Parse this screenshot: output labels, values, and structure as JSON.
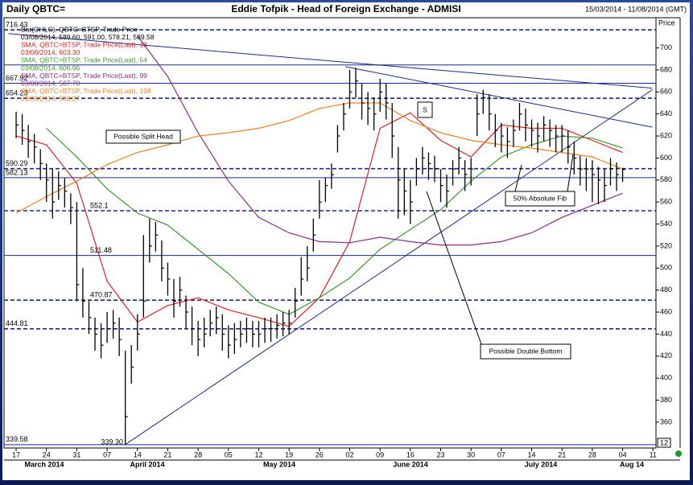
{
  "chart_data": {
    "type": "ohlc",
    "title": "Daily QBTC=",
    "subtitle": "Eddie Tofpik - Head of Foreign Exchange - ADMISI",
    "date_range": "15/03/2014 - 11/08/2014 (GMT)",
    "y_axis_label": "Price",
    "corner_label": "12",
    "legend": [
      {
        "text": "Bar(OHLC), QBTC=BTSP, Trade Price",
        "color": "#000000"
      },
      {
        "text": "03/08/2014, 589.60, 591.00, 578.21, 589.58",
        "color": "#000000"
      },
      {
        "text": "SMA, QBTC=BTSP, Trade Price(Last), 18",
        "color": "#e02020"
      },
      {
        "text": "03/08/2014, 603.30",
        "color": "#e02020"
      },
      {
        "text": "SMA, QBTC=BTSP, Trade Price(Last), 54",
        "color": "#3a9a2a"
      },
      {
        "text": "03/08/2014, 606.96",
        "color": "#3a9a2a"
      },
      {
        "text": "SMA, QBTC=BTSP, Trade Price(Last), 99",
        "color": "#8a2a8a"
      },
      {
        "text": "03/08/2014, 567.78",
        "color": "#8a2a8a"
      },
      {
        "text": "SMA, QBTC=BTSP, Trade Price(Last), 198",
        "color": "#f08020"
      },
      {
        "text": "03/08/2014, 588.27",
        "color": "#f08020"
      }
    ],
    "months": [
      "March 2014",
      "April 2014",
      "May 2014",
      "June 2014",
      "July 2014",
      "Aug 14"
    ],
    "annotations": [
      "Possible Split Head",
      "S",
      "50% Absolute Fib",
      "Possible Double Bottom"
    ],
    "xlim": [
      -1.6,
      105.1
    ],
    "xticks": [
      {
        "value": 0,
        "label": "17"
      },
      {
        "value": 5,
        "label": "24"
      },
      {
        "value": 10,
        "label": "31"
      },
      {
        "value": 15,
        "label": "07"
      },
      {
        "value": 20,
        "label": "14"
      },
      {
        "value": 25,
        "label": "21"
      },
      {
        "value": 30,
        "label": "28"
      },
      {
        "value": 35,
        "label": "05"
      },
      {
        "value": 40,
        "label": "12"
      },
      {
        "value": 45,
        "label": "19"
      },
      {
        "value": 50,
        "label": "26"
      },
      {
        "value": 55,
        "label": "02"
      },
      {
        "value": 60,
        "label": "09"
      },
      {
        "value": 65,
        "label": "16"
      },
      {
        "value": 70,
        "label": "23"
      },
      {
        "value": 75,
        "label": "30"
      },
      {
        "value": 80,
        "label": "07"
      },
      {
        "value": 85,
        "label": "14"
      },
      {
        "value": 90,
        "label": "21"
      },
      {
        "value": 95,
        "label": "28"
      },
      {
        "value": 100,
        "label": "04"
      },
      {
        "value": 105,
        "label": "11"
      }
    ],
    "ylim": [
      338,
      726
    ],
    "yticks": [
      360,
      380,
      400,
      420,
      440,
      460,
      480,
      500,
      520,
      540,
      560,
      580,
      600,
      620,
      640,
      660,
      680,
      700
    ],
    "bar_color": "#000000",
    "high": [
      642,
      640,
      630,
      622,
      608,
      595,
      590,
      588,
      582,
      568,
      560,
      500,
      470,
      455,
      450,
      460,
      462,
      455,
      425,
      430,
      458,
      530,
      545,
      542,
      525,
      505,
      490,
      492,
      475,
      465,
      452,
      455,
      462,
      465,
      458,
      448,
      450,
      452,
      455,
      452,
      452,
      455,
      455,
      458,
      460,
      462,
      482,
      510,
      520,
      545,
      580,
      582,
      595,
      630,
      650,
      680,
      682,
      668,
      660,
      655,
      672,
      668,
      650,
      610,
      590,
      580,
      600,
      610,
      605,
      602,
      590,
      585,
      598,
      610,
      598,
      600,
      658,
      662,
      658,
      640,
      632,
      628,
      635,
      650,
      645,
      635,
      632,
      638,
      635,
      630,
      630,
      625,
      615,
      602,
      600,
      598,
      592,
      590,
      600,
      596,
      591
    ],
    "low": [
      618,
      612,
      600,
      595,
      580,
      560,
      545,
      562,
      555,
      540,
      470,
      455,
      440,
      425,
      418,
      432,
      436,
      420,
      339.3,
      395,
      425,
      455,
      505,
      515,
      488,
      475,
      455,
      465,
      445,
      430,
      420,
      428,
      438,
      440,
      425,
      418,
      422,
      428,
      432,
      428,
      428,
      432,
      433,
      436,
      438,
      440,
      455,
      475,
      488,
      515,
      545,
      560,
      572,
      605,
      625,
      645,
      655,
      635,
      630,
      625,
      642,
      635,
      600,
      545,
      548,
      540,
      575,
      585,
      580,
      578,
      560,
      555,
      575,
      585,
      570,
      575,
      620,
      640,
      625,
      610,
      605,
      600,
      610,
      625,
      615,
      610,
      605,
      615,
      610,
      605,
      605,
      595,
      585,
      575,
      570,
      560,
      558,
      560,
      575,
      570,
      578.21
    ],
    "close": [
      630,
      625,
      615,
      610,
      595,
      580,
      560,
      575,
      570,
      555,
      485,
      470,
      455,
      440,
      430,
      445,
      450,
      435,
      365,
      410,
      440,
      470,
      520,
      530,
      500,
      490,
      470,
      480,
      460,
      445,
      435,
      440,
      450,
      455,
      440,
      430,
      435,
      440,
      445,
      440,
      440,
      445,
      445,
      448,
      450,
      450,
      470,
      490,
      500,
      530,
      560,
      575,
      585,
      620,
      640,
      660,
      670,
      650,
      645,
      640,
      660,
      650,
      620,
      580,
      570,
      560,
      590,
      600,
      595,
      590,
      575,
      570,
      590,
      600,
      585,
      590,
      640,
      655,
      640,
      625,
      620,
      615,
      625,
      640,
      630,
      625,
      620,
      630,
      625,
      620,
      620,
      610,
      600,
      590,
      590,
      585,
      580,
      575,
      590,
      585,
      589.58
    ],
    "ma_x": [
      0,
      5,
      10,
      15,
      20,
      25,
      30,
      35,
      40,
      45,
      50,
      55,
      60,
      65,
      70,
      75,
      80,
      85,
      90,
      95,
      100
    ],
    "series": [
      {
        "name": "SMA 18",
        "color": "#e02020",
        "values": [
          620,
          612,
          577,
          488,
          451,
          466,
          473,
          462,
          455,
          447,
          473,
          524,
          627,
          641,
          616,
          601,
          630,
          627,
          627,
          616,
          605
        ]
      },
      {
        "name": "SMA 54",
        "color": "#3a9a2a",
        "values": [
          null,
          627,
          601,
          572,
          550,
          539,
          517,
          495,
          469,
          458,
          473,
          491,
          517,
          535,
          553,
          579,
          601,
          612,
          620,
          618,
          609
        ]
      },
      {
        "name": "SMA 99",
        "color": "#8a2a8a",
        "values": [
          null,
          null,
          null,
          null,
          711,
          674,
          623,
          579,
          546,
          532,
          524,
          523,
          528,
          524,
          521,
          521,
          524,
          532,
          546,
          557,
          568
        ]
      },
      {
        "name": "SMA 198",
        "color": "#f08020",
        "values": [
          550,
          565,
          579,
          594,
          605,
          612,
          620,
          623,
          627,
          634,
          645,
          650,
          650,
          634,
          623,
          616,
          612,
          609,
          605,
          601,
          590
        ]
      }
    ],
    "levels": [
      {
        "price": 716.43,
        "style": "dashed"
      },
      {
        "price": 667.92,
        "style": "solid"
      },
      {
        "price": 654.23,
        "style": "dashed"
      },
      {
        "price": 590.29,
        "style": "dashed"
      },
      {
        "price": 582.13,
        "style": "solid"
      },
      {
        "price": 552.1,
        "style": "dashed"
      },
      {
        "price": 511.48,
        "style": "solid"
      },
      {
        "price": 470.87,
        "style": "dashed"
      },
      {
        "price": 444.81,
        "style": "dashed"
      },
      {
        "price": 339.58,
        "style": "solid"
      }
    ],
    "guide_lines": [
      684.5
    ],
    "trendlines": [
      {
        "x1": 17.9,
        "y1": 339.3,
        "y1_label": "339.30",
        "x2": 104.9,
        "y2": 662
      },
      {
        "x1": -1.3,
        "y1": 713,
        "x2": 104.9,
        "y2": 663.4
      },
      {
        "x1": 54.3,
        "y1": 683,
        "x2": 104.9,
        "y2": 628
      }
    ],
    "line_color": "#1a2a8a"
  }
}
